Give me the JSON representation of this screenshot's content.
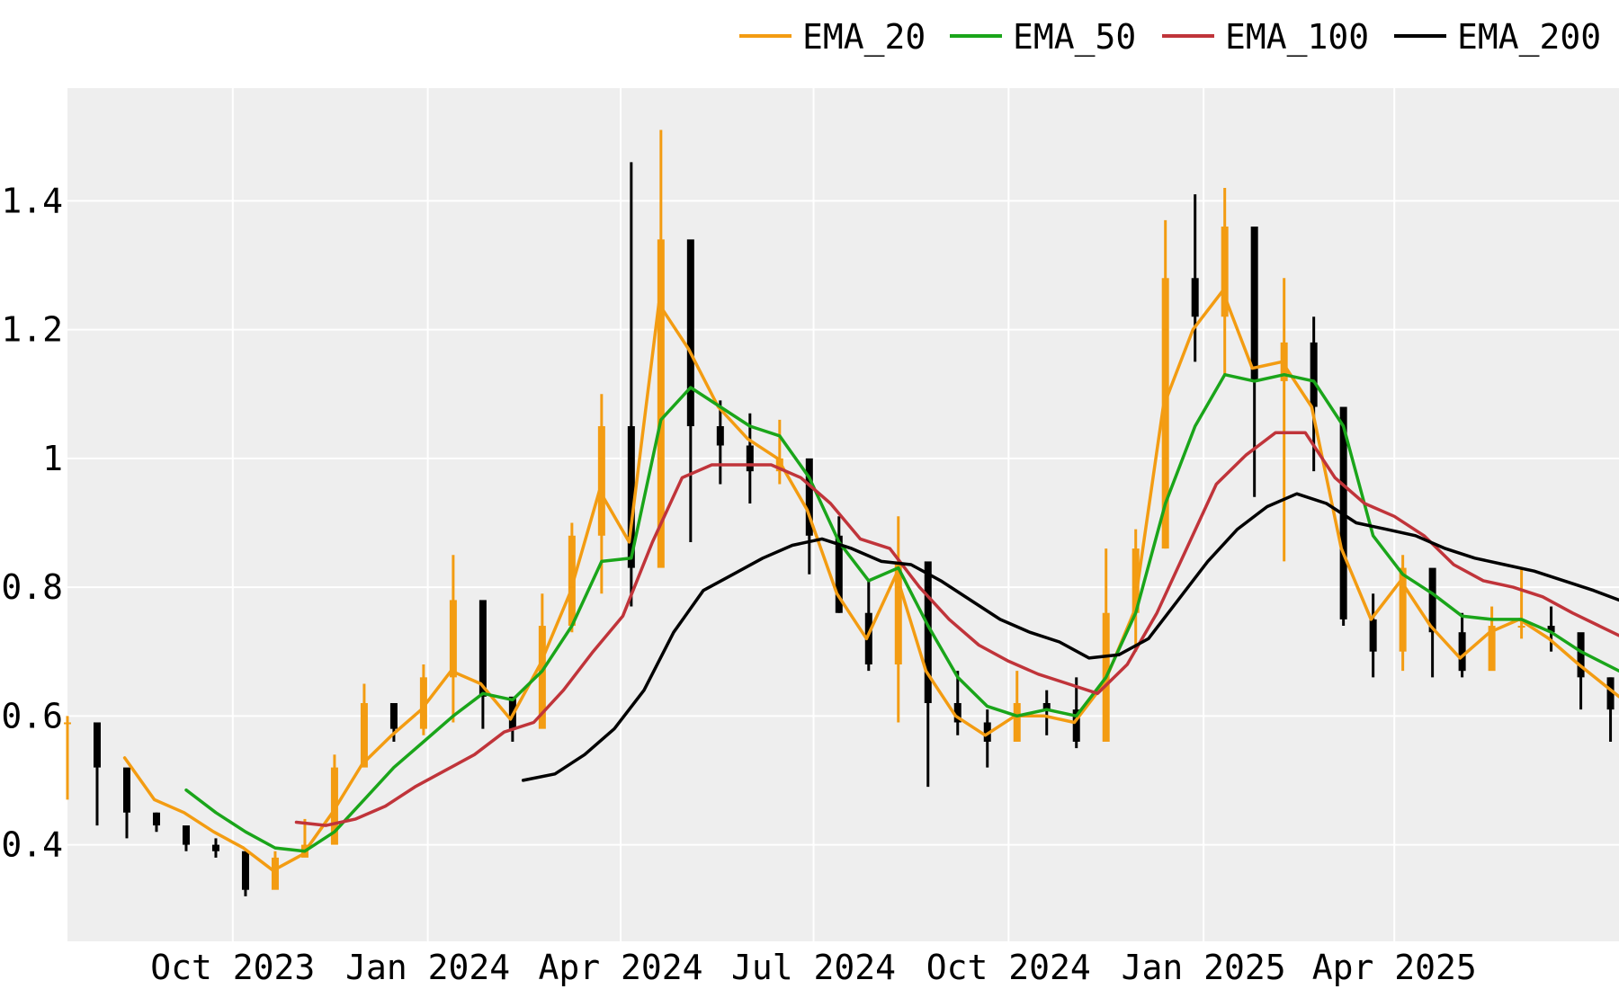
{
  "chart_data": {
    "type": "line",
    "title": "",
    "xlabel": "",
    "ylabel": "",
    "x_range": [
      "2023-07-15",
      "2025-07-16"
    ],
    "ylim": [
      0.25,
      1.575
    ],
    "grid": true,
    "legend_position": "top-right",
    "y_ticks": [
      {
        "value": 0.4,
        "label": "0.4"
      },
      {
        "value": 0.6,
        "label": "0.6"
      },
      {
        "value": 0.8,
        "label": "0.8"
      },
      {
        "value": 1.0,
        "label": "1"
      },
      {
        "value": 1.2,
        "label": "1.2"
      },
      {
        "value": 1.4,
        "label": "1.4"
      }
    ],
    "x_ticks": [
      {
        "value": "2023-10-01",
        "label": "Oct 2023"
      },
      {
        "value": "2024-01-01",
        "label": "Jan 2024"
      },
      {
        "value": "2024-04-01",
        "label": "Apr 2024"
      },
      {
        "value": "2024-07-01",
        "label": "Jul 2024"
      },
      {
        "value": "2024-10-01",
        "label": "Oct 2024"
      },
      {
        "value": "2025-01-01",
        "label": "Jan 2025"
      },
      {
        "value": "2025-04-01",
        "label": "Apr 2025"
      }
    ],
    "price_candles": {
      "up_color": "#f39c12",
      "down_color": "#000000",
      "x": [
        "2023-07-15",
        "2023-07-29",
        "2023-08-12",
        "2023-08-26",
        "2023-09-09",
        "2023-09-23",
        "2023-10-07",
        "2023-10-21",
        "2023-11-04",
        "2023-11-18",
        "2023-12-02",
        "2023-12-16",
        "2023-12-30",
        "2024-01-13",
        "2024-01-27",
        "2024-02-10",
        "2024-02-24",
        "2024-03-09",
        "2024-03-23",
        "2024-04-06",
        "2024-04-20",
        "2024-05-04",
        "2024-05-18",
        "2024-06-01",
        "2024-06-15",
        "2024-06-29",
        "2024-07-13",
        "2024-07-27",
        "2024-08-10",
        "2024-08-24",
        "2024-09-07",
        "2024-09-21",
        "2024-10-05",
        "2024-10-19",
        "2024-11-02",
        "2024-11-16",
        "2024-11-30",
        "2024-12-14",
        "2024-12-28",
        "2025-01-11",
        "2025-01-25",
        "2025-02-08",
        "2025-02-22",
        "2025-03-08",
        "2025-03-22",
        "2025-04-05",
        "2025-04-19",
        "2025-05-03",
        "2025-05-17",
        "2025-05-31",
        "2025-06-14",
        "2025-06-28",
        "2025-07-12"
      ],
      "close": [
        0.59,
        0.52,
        0.45,
        0.43,
        0.4,
        0.39,
        0.33,
        0.38,
        0.4,
        0.52,
        0.62,
        0.58,
        0.66,
        0.78,
        0.63,
        0.58,
        0.74,
        0.88,
        1.05,
        0.83,
        1.34,
        1.05,
        1.02,
        0.98,
        1.0,
        0.88,
        0.76,
        0.68,
        0.84,
        0.62,
        0.59,
        0.56,
        0.62,
        0.61,
        0.56,
        0.76,
        0.86,
        1.28,
        1.22,
        1.36,
        1.12,
        1.18,
        1.08,
        0.75,
        0.7,
        0.83,
        0.73,
        0.67,
        0.74,
        0.74,
        0.73,
        0.66,
        0.61
      ],
      "high": [
        0.6,
        0.54,
        0.46,
        0.45,
        0.42,
        0.41,
        0.35,
        0.39,
        0.44,
        0.54,
        0.65,
        0.62,
        0.68,
        0.85,
        0.67,
        0.6,
        0.79,
        0.9,
        1.1,
        1.46,
        1.51,
        1.27,
        1.09,
        1.07,
        1.06,
        0.97,
        0.91,
        0.81,
        0.91,
        0.72,
        0.67,
        0.61,
        0.67,
        0.64,
        0.66,
        0.86,
        0.89,
        1.37,
        1.41,
        1.42,
        1.23,
        1.28,
        1.22,
        1.07,
        0.79,
        0.85,
        0.81,
        0.76,
        0.77,
        0.83,
        0.77,
        0.72,
        0.66
      ],
      "low": [
        0.47,
        0.43,
        0.41,
        0.42,
        0.39,
        0.38,
        0.32,
        0.36,
        0.39,
        0.47,
        0.57,
        0.56,
        0.57,
        0.59,
        0.58,
        0.56,
        0.61,
        0.73,
        0.79,
        0.77,
        1.03,
        0.87,
        0.96,
        0.93,
        0.96,
        0.82,
        0.76,
        0.67,
        0.59,
        0.49,
        0.57,
        0.52,
        0.56,
        0.57,
        0.55,
        0.59,
        0.7,
        0.86,
        1.15,
        1.13,
        0.94,
        0.84,
        0.98,
        0.74,
        0.66,
        0.67,
        0.66,
        0.66,
        0.7,
        0.72,
        0.7,
        0.61,
        0.56
      ]
    },
    "series": [
      {
        "name": "EMA_20",
        "color": "#f39c12",
        "x": [
          "2023-08-11",
          "2023-08-25",
          "2023-09-08",
          "2023-09-22",
          "2023-10-06",
          "2023-10-20",
          "2023-11-03",
          "2023-11-17",
          "2023-12-01",
          "2023-12-15",
          "2023-12-29",
          "2024-01-12",
          "2024-01-26",
          "2024-02-09",
          "2024-02-23",
          "2024-03-08",
          "2024-03-22",
          "2024-04-05",
          "2024-04-19",
          "2024-05-03",
          "2024-05-17",
          "2024-05-31",
          "2024-06-14",
          "2024-06-28",
          "2024-07-12",
          "2024-07-26",
          "2024-08-09",
          "2024-08-23",
          "2024-09-06",
          "2024-09-20",
          "2024-10-04",
          "2024-10-18",
          "2024-11-01",
          "2024-11-15",
          "2024-11-29",
          "2024-12-13",
          "2024-12-27",
          "2025-01-10",
          "2025-01-24",
          "2025-02-07",
          "2025-02-21",
          "2025-03-07",
          "2025-03-21",
          "2025-04-04",
          "2025-04-18",
          "2025-05-02",
          "2025-05-16",
          "2025-05-30",
          "2025-06-13",
          "2025-06-27",
          "2025-07-16"
        ],
        "y": [
          0.535,
          0.47,
          0.45,
          0.42,
          0.395,
          0.36,
          0.385,
          0.45,
          0.525,
          0.57,
          0.61,
          0.67,
          0.65,
          0.595,
          0.68,
          0.79,
          0.95,
          0.87,
          1.24,
          1.17,
          1.08,
          1.03,
          1.0,
          0.92,
          0.79,
          0.72,
          0.82,
          0.67,
          0.6,
          0.57,
          0.6,
          0.6,
          0.59,
          0.65,
          0.76,
          1.08,
          1.2,
          1.26,
          1.14,
          1.15,
          1.08,
          0.86,
          0.75,
          0.81,
          0.74,
          0.69,
          0.73,
          0.75,
          0.72,
          0.68,
          0.63
        ]
      },
      {
        "name": "EMA_50",
        "color": "#1aa51a",
        "x": [
          "2023-09-09",
          "2023-09-23",
          "2023-10-07",
          "2023-10-21",
          "2023-11-04",
          "2023-11-18",
          "2023-12-02",
          "2023-12-16",
          "2023-12-30",
          "2024-01-13",
          "2024-01-27",
          "2024-02-10",
          "2024-02-24",
          "2024-03-09",
          "2024-03-23",
          "2024-04-06",
          "2024-04-20",
          "2024-05-04",
          "2024-05-18",
          "2024-06-01",
          "2024-06-15",
          "2024-06-29",
          "2024-07-13",
          "2024-07-27",
          "2024-08-10",
          "2024-08-24",
          "2024-09-07",
          "2024-09-21",
          "2024-10-05",
          "2024-10-19",
          "2024-11-02",
          "2024-11-16",
          "2024-11-30",
          "2024-12-14",
          "2024-12-28",
          "2025-01-11",
          "2025-01-25",
          "2025-02-08",
          "2025-02-22",
          "2025-03-08",
          "2025-03-22",
          "2025-04-05",
          "2025-04-19",
          "2025-05-03",
          "2025-05-17",
          "2025-05-31",
          "2025-06-14",
          "2025-06-28",
          "2025-07-16"
        ],
        "y": [
          0.485,
          0.45,
          0.42,
          0.395,
          0.39,
          0.42,
          0.47,
          0.52,
          0.56,
          0.6,
          0.635,
          0.625,
          0.67,
          0.74,
          0.84,
          0.845,
          1.06,
          1.11,
          1.08,
          1.05,
          1.035,
          0.97,
          0.87,
          0.81,
          0.83,
          0.74,
          0.66,
          0.615,
          0.6,
          0.61,
          0.6,
          0.66,
          0.76,
          0.93,
          1.05,
          1.13,
          1.12,
          1.13,
          1.12,
          1.05,
          0.88,
          0.82,
          0.79,
          0.755,
          0.75,
          0.75,
          0.73,
          0.7,
          0.67
        ]
      },
      {
        "name": "EMA_100",
        "color": "#c0343a",
        "x": [
          "2023-10-31",
          "2023-11-14",
          "2023-11-28",
          "2023-12-12",
          "2023-12-26",
          "2024-01-09",
          "2024-01-23",
          "2024-02-06",
          "2024-02-20",
          "2024-03-05",
          "2024-03-19",
          "2024-04-02",
          "2024-04-16",
          "2024-04-30",
          "2024-05-14",
          "2024-05-28",
          "2024-06-11",
          "2024-06-25",
          "2024-07-09",
          "2024-07-23",
          "2024-08-06",
          "2024-08-20",
          "2024-09-03",
          "2024-09-17",
          "2024-10-01",
          "2024-10-15",
          "2024-10-29",
          "2024-11-12",
          "2024-11-26",
          "2024-12-10",
          "2024-12-24",
          "2025-01-07",
          "2025-01-21",
          "2025-02-04",
          "2025-02-18",
          "2025-03-04",
          "2025-03-18",
          "2025-04-01",
          "2025-04-15",
          "2025-04-29",
          "2025-05-13",
          "2025-05-27",
          "2025-06-10",
          "2025-06-24",
          "2025-07-16"
        ],
        "y": [
          0.435,
          0.43,
          0.44,
          0.46,
          0.49,
          0.515,
          0.54,
          0.575,
          0.59,
          0.64,
          0.7,
          0.755,
          0.87,
          0.97,
          0.99,
          0.99,
          0.99,
          0.97,
          0.93,
          0.875,
          0.86,
          0.8,
          0.75,
          0.71,
          0.685,
          0.665,
          0.65,
          0.635,
          0.68,
          0.76,
          0.86,
          0.96,
          1.005,
          1.04,
          1.04,
          0.97,
          0.93,
          0.91,
          0.88,
          0.835,
          0.81,
          0.8,
          0.785,
          0.76,
          0.725
        ]
      },
      {
        "name": "EMA_200",
        "color": "#000000",
        "x": [
          "2024-02-15",
          "2024-03-01",
          "2024-03-15",
          "2024-03-29",
          "2024-04-12",
          "2024-04-26",
          "2024-05-10",
          "2024-05-24",
          "2024-06-07",
          "2024-06-21",
          "2024-07-05",
          "2024-07-19",
          "2024-08-02",
          "2024-08-16",
          "2024-08-30",
          "2024-09-13",
          "2024-09-27",
          "2024-10-11",
          "2024-10-25",
          "2024-11-08",
          "2024-11-22",
          "2024-12-06",
          "2024-12-20",
          "2025-01-03",
          "2025-01-17",
          "2025-01-31",
          "2025-02-14",
          "2025-02-28",
          "2025-03-14",
          "2025-03-28",
          "2025-04-11",
          "2025-04-25",
          "2025-05-09",
          "2025-05-23",
          "2025-06-06",
          "2025-06-20",
          "2025-07-04",
          "2025-07-16"
        ],
        "y": [
          0.5,
          0.51,
          0.54,
          0.58,
          0.64,
          0.73,
          0.795,
          0.82,
          0.845,
          0.865,
          0.875,
          0.86,
          0.84,
          0.835,
          0.81,
          0.78,
          0.75,
          0.73,
          0.715,
          0.69,
          0.695,
          0.72,
          0.78,
          0.84,
          0.89,
          0.925,
          0.945,
          0.93,
          0.9,
          0.89,
          0.88,
          0.86,
          0.845,
          0.835,
          0.825,
          0.81,
          0.795,
          0.78
        ]
      }
    ],
    "legend": [
      {
        "label": "EMA_20",
        "color": "#f39c12"
      },
      {
        "label": "EMA_50",
        "color": "#1aa51a"
      },
      {
        "label": "EMA_100",
        "color": "#c0343a"
      },
      {
        "label": "EMA_200",
        "color": "#000000"
      }
    ]
  }
}
